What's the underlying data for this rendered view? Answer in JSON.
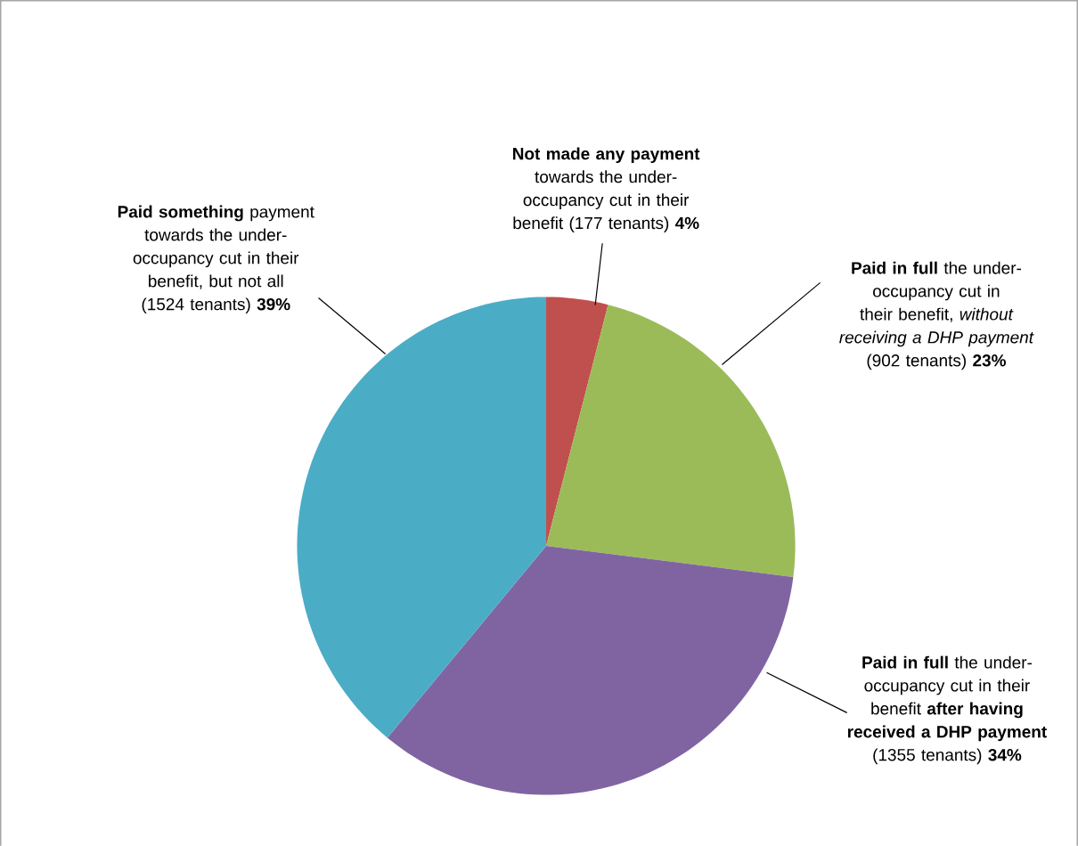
{
  "chart_data": {
    "type": "pie",
    "categories": [
      "**Not made any payment** towards the under-occupancy cut in their benefit (177 tenants) **4%**",
      "**Paid in full** the under-occupancy cut in their benefit, *without receiving a DHP payment* (902 tenants) **23%**",
      "**Paid in full** the under-occupancy cut in their benefit **after having received a DHP payment** (1355 tenants) **34%**",
      "**Paid something** payment towards the under-occupancy cut in their benefit, but not all (1524 tenants) **39%**"
    ],
    "values": [
      4,
      23,
      34,
      39
    ],
    "colors": [
      "#c0504d",
      "#9bbb59",
      "#8064a2",
      "#4bacc6"
    ]
  }
}
